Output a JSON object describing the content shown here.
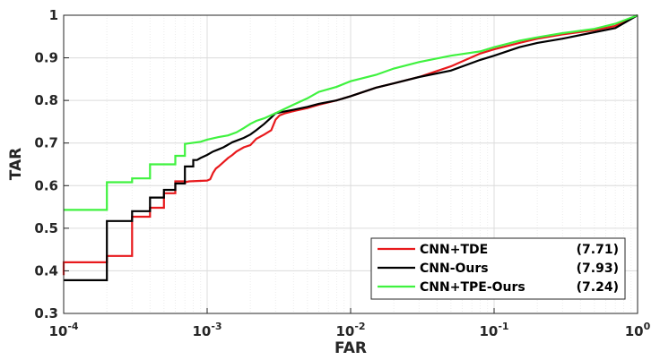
{
  "chart_data": {
    "type": "line",
    "xlabel": "FAR",
    "ylabel": "TAR",
    "x_scale": "log",
    "xlim": [
      0.0001,
      1
    ],
    "ylim": [
      0.3,
      1
    ],
    "grid": true,
    "legend_position": "bottom-right",
    "x_tick_base": "10",
    "x_ticks": [
      {
        "value": 0.0001,
        "exp": "-4"
      },
      {
        "value": 0.001,
        "exp": "-3"
      },
      {
        "value": 0.01,
        "exp": "-2"
      },
      {
        "value": 0.1,
        "exp": "-1"
      },
      {
        "value": 1,
        "exp": "0"
      }
    ],
    "y_ticks": [
      {
        "value": 0.3,
        "label": "0.3"
      },
      {
        "value": 0.4,
        "label": "0.4"
      },
      {
        "value": 0.5,
        "label": "0.5"
      },
      {
        "value": 0.6,
        "label": "0.6"
      },
      {
        "value": 0.7,
        "label": "0.7"
      },
      {
        "value": 0.8,
        "label": "0.8"
      },
      {
        "value": 0.9,
        "label": "0.9"
      },
      {
        "value": 1,
        "label": "1"
      }
    ],
    "series": [
      {
        "name": "CNN+TDE",
        "score": "(7.71)",
        "color": "#e8191c",
        "x": [
          0.0001,
          0.0001,
          0.0002,
          0.0002,
          0.0003,
          0.0003,
          0.0004,
          0.0004,
          0.0005,
          0.0005,
          0.0006,
          0.0006,
          0.0007,
          0.0007,
          0.00075,
          0.001,
          0.00105,
          0.0011,
          0.00115,
          0.0012,
          0.0013,
          0.0014,
          0.0015,
          0.0016,
          0.0018,
          0.002,
          0.0022,
          0.0025,
          0.0028,
          0.003,
          0.0032,
          0.0035,
          0.004,
          0.005,
          0.006,
          0.008,
          0.01,
          0.015,
          0.02,
          0.03,
          0.05,
          0.08,
          0.1,
          0.15,
          0.2,
          0.3,
          0.5,
          0.7,
          1.0
        ],
        "y": [
          0.39,
          0.42,
          0.42,
          0.435,
          0.435,
          0.527,
          0.527,
          0.548,
          0.548,
          0.582,
          0.582,
          0.61,
          0.61,
          0.608,
          0.61,
          0.612,
          0.615,
          0.63,
          0.64,
          0.645,
          0.655,
          0.665,
          0.672,
          0.68,
          0.69,
          0.695,
          0.71,
          0.72,
          0.73,
          0.755,
          0.765,
          0.77,
          0.775,
          0.782,
          0.79,
          0.8,
          0.81,
          0.83,
          0.84,
          0.855,
          0.88,
          0.91,
          0.92,
          0.935,
          0.945,
          0.955,
          0.965,
          0.975,
          1.0
        ]
      },
      {
        "name": "CNN-Ours",
        "score": "(7.93)",
        "color": "#000000",
        "x": [
          0.0001,
          0.0002,
          0.0002,
          0.0003,
          0.0003,
          0.0004,
          0.0004,
          0.0005,
          0.0005,
          0.0006,
          0.0006,
          0.0007,
          0.0007,
          0.0008,
          0.0008,
          0.00085,
          0.0009,
          0.001,
          0.0011,
          0.0012,
          0.0013,
          0.0015,
          0.0018,
          0.002,
          0.0022,
          0.0025,
          0.0028,
          0.003,
          0.004,
          0.005,
          0.006,
          0.008,
          0.01,
          0.015,
          0.02,
          0.03,
          0.05,
          0.08,
          0.1,
          0.15,
          0.2,
          0.3,
          0.5,
          0.7,
          1.0
        ],
        "y": [
          0.378,
          0.378,
          0.517,
          0.517,
          0.54,
          0.54,
          0.572,
          0.572,
          0.59,
          0.59,
          0.605,
          0.605,
          0.645,
          0.645,
          0.66,
          0.66,
          0.665,
          0.672,
          0.68,
          0.685,
          0.69,
          0.702,
          0.712,
          0.72,
          0.73,
          0.745,
          0.76,
          0.77,
          0.778,
          0.785,
          0.792,
          0.8,
          0.81,
          0.83,
          0.84,
          0.855,
          0.87,
          0.895,
          0.905,
          0.925,
          0.935,
          0.945,
          0.96,
          0.97,
          1.0
        ]
      },
      {
        "name": "CNN+TPE-Ours",
        "score": "(7.24)",
        "color": "#3ff23f",
        "x": [
          0.0001,
          0.0002,
          0.0002,
          0.0003,
          0.0003,
          0.0004,
          0.0004,
          0.0006,
          0.0006,
          0.0007,
          0.0007,
          0.0009,
          0.001,
          0.0012,
          0.0014,
          0.0016,
          0.0018,
          0.002,
          0.0022,
          0.0025,
          0.003,
          0.004,
          0.005,
          0.006,
          0.008,
          0.01,
          0.015,
          0.02,
          0.03,
          0.05,
          0.08,
          0.1,
          0.15,
          0.2,
          0.3,
          0.5,
          0.7,
          1.0
        ],
        "y": [
          0.543,
          0.543,
          0.608,
          0.608,
          0.617,
          0.617,
          0.65,
          0.65,
          0.67,
          0.67,
          0.698,
          0.703,
          0.708,
          0.714,
          0.718,
          0.725,
          0.735,
          0.745,
          0.752,
          0.758,
          0.77,
          0.79,
          0.805,
          0.82,
          0.832,
          0.845,
          0.86,
          0.875,
          0.89,
          0.905,
          0.915,
          0.925,
          0.94,
          0.948,
          0.958,
          0.968,
          0.98,
          1.0
        ]
      }
    ]
  }
}
